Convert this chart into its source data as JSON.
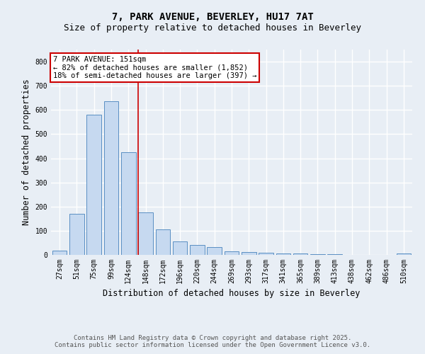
{
  "title_line1": "7, PARK AVENUE, BEVERLEY, HU17 7AT",
  "title_line2": "Size of property relative to detached houses in Beverley",
  "xlabel": "Distribution of detached houses by size in Beverley",
  "ylabel": "Number of detached properties",
  "categories": [
    "27sqm",
    "51sqm",
    "75sqm",
    "99sqm",
    "124sqm",
    "148sqm",
    "172sqm",
    "196sqm",
    "220sqm",
    "244sqm",
    "269sqm",
    "293sqm",
    "317sqm",
    "341sqm",
    "365sqm",
    "389sqm",
    "413sqm",
    "438sqm",
    "462sqm",
    "486sqm",
    "510sqm"
  ],
  "values": [
    18,
    170,
    580,
    635,
    425,
    175,
    105,
    57,
    42,
    32,
    15,
    12,
    10,
    7,
    5,
    3,
    3,
    1,
    1,
    1,
    5
  ],
  "bar_color": "#c6d9f0",
  "bar_edge_color": "#5a8fc3",
  "background_color": "#e8eef5",
  "grid_color": "#ffffff",
  "vline_x_index": 5,
  "vline_color": "#cc0000",
  "annotation_text": "7 PARK AVENUE: 151sqm\n← 82% of detached houses are smaller (1,852)\n18% of semi-detached houses are larger (397) →",
  "annotation_box_color": "#cc0000",
  "annotation_text_color": "#000000",
  "ylim": [
    0,
    850
  ],
  "yticks": [
    0,
    100,
    200,
    300,
    400,
    500,
    600,
    700,
    800
  ],
  "footnote_line1": "Contains HM Land Registry data © Crown copyright and database right 2025.",
  "footnote_line2": "Contains public sector information licensed under the Open Government Licence v3.0.",
  "title_fontsize": 10,
  "subtitle_fontsize": 9,
  "axis_label_fontsize": 8.5,
  "tick_fontsize": 7,
  "annotation_fontsize": 7.5,
  "footnote_fontsize": 6.5
}
